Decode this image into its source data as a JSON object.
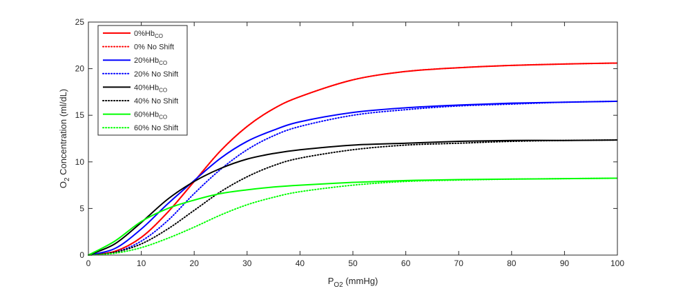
{
  "chart_data": {
    "type": "line",
    "xlabel": {
      "main": "P",
      "sub": "O2",
      "rest": " (mmHg)"
    },
    "ylabel": {
      "main": "O",
      "sub": "2",
      "rest": " Concentration (ml/dL)"
    },
    "xlim": [
      0,
      100
    ],
    "ylim": [
      0,
      25
    ],
    "xticks": [
      "0",
      "10",
      "20",
      "30",
      "40",
      "50",
      "60",
      "70",
      "80",
      "90",
      "100"
    ],
    "yticks": [
      "0",
      "5",
      "10",
      "15",
      "20",
      "25"
    ],
    "grid": false,
    "legend_position": "top-left",
    "series": [
      {
        "name": "0%Hb",
        "name_sub": "CO",
        "color": "#ff0000",
        "style": "solid",
        "x": [
          0,
          5,
          10,
          15,
          20,
          25,
          30,
          35,
          40,
          50,
          60,
          70,
          80,
          90,
          100
        ],
        "y": [
          0,
          0.4,
          1.9,
          4.6,
          7.9,
          11.2,
          13.8,
          15.7,
          17.0,
          18.8,
          19.7,
          20.1,
          20.35,
          20.5,
          20.6
        ]
      },
      {
        "name": "0% No Shift",
        "name_sub": "",
        "color": "#ff0000",
        "style": "dotted",
        "x": [
          0,
          5,
          10,
          15,
          20,
          25,
          30,
          35,
          40,
          50,
          60,
          70,
          80,
          90,
          100
        ],
        "y": [
          0,
          0.4,
          1.9,
          4.6,
          7.9,
          11.2,
          13.8,
          15.7,
          17.0,
          18.8,
          19.7,
          20.1,
          20.35,
          20.5,
          20.6
        ]
      },
      {
        "name": "20%Hb",
        "name_sub": "CO",
        "color": "#0000ff",
        "style": "solid",
        "x": [
          0,
          5,
          10,
          15,
          20,
          25,
          30,
          35,
          40,
          50,
          60,
          70,
          80,
          90,
          100
        ],
        "y": [
          0,
          0.7,
          2.8,
          5.5,
          8.0,
          10.4,
          12.2,
          13.4,
          14.3,
          15.3,
          15.8,
          16.1,
          16.3,
          16.4,
          16.5
        ]
      },
      {
        "name": "20% No Shift",
        "name_sub": "",
        "color": "#0000ff",
        "style": "dotted",
        "x": [
          0,
          5,
          10,
          15,
          20,
          25,
          30,
          35,
          40,
          50,
          60,
          70,
          80,
          90,
          100
        ],
        "y": [
          0,
          0.3,
          1.5,
          3.7,
          6.6,
          9.2,
          11.3,
          12.8,
          13.8,
          15.0,
          15.6,
          16.0,
          16.2,
          16.4,
          16.5
        ]
      },
      {
        "name": "40%Hb",
        "name_sub": "CO",
        "color": "#000000",
        "style": "solid",
        "x": [
          0,
          5,
          10,
          15,
          20,
          25,
          30,
          35,
          40,
          50,
          60,
          70,
          80,
          90,
          100
        ],
        "y": [
          0,
          1.2,
          3.5,
          6.0,
          7.9,
          9.3,
          10.3,
          10.9,
          11.3,
          11.8,
          12.0,
          12.2,
          12.3,
          12.3,
          12.35
        ]
      },
      {
        "name": "40% No Shift",
        "name_sub": "",
        "color": "#000000",
        "style": "dotted",
        "x": [
          0,
          5,
          10,
          15,
          20,
          25,
          30,
          35,
          40,
          50,
          60,
          70,
          80,
          90,
          100
        ],
        "y": [
          0,
          0.3,
          1.2,
          2.8,
          4.8,
          6.8,
          8.4,
          9.6,
          10.4,
          11.3,
          11.8,
          12.0,
          12.2,
          12.3,
          12.35
        ]
      },
      {
        "name": "60%Hb",
        "name_sub": "CO",
        "color": "#00ff00",
        "style": "solid",
        "x": [
          0,
          5,
          10,
          15,
          20,
          25,
          30,
          35,
          40,
          50,
          60,
          70,
          80,
          90,
          100
        ],
        "y": [
          0,
          1.5,
          3.6,
          5.0,
          5.9,
          6.6,
          7.0,
          7.3,
          7.5,
          7.8,
          8.0,
          8.1,
          8.15,
          8.2,
          8.25
        ]
      },
      {
        "name": "60% No Shift",
        "name_sub": "",
        "color": "#00ff00",
        "style": "dotted",
        "x": [
          0,
          5,
          10,
          15,
          20,
          25,
          30,
          35,
          40,
          50,
          60,
          70,
          80,
          90,
          100
        ],
        "y": [
          0,
          0.2,
          0.8,
          1.8,
          3.0,
          4.3,
          5.4,
          6.2,
          6.8,
          7.5,
          7.9,
          8.05,
          8.15,
          8.2,
          8.25
        ]
      }
    ]
  }
}
